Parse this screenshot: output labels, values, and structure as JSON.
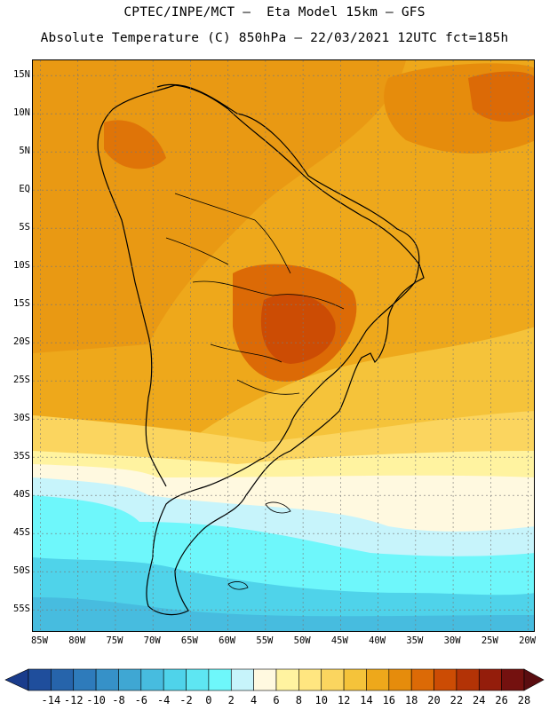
{
  "header": {
    "line1": "CPTEC/INPE/MCT –  Eta Model 15km – GFS",
    "line2": "Absolute Temperature (C) 850hPa – 22/03/2021 12UTC fct=185h"
  },
  "map": {
    "projection": "lat-lon",
    "lon_range": [
      -86,
      -19
    ],
    "lat_range": [
      -58,
      17
    ],
    "lat_ticks": [
      {
        "value": 15,
        "label": "15N"
      },
      {
        "value": 10,
        "label": "10N"
      },
      {
        "value": 5,
        "label": "5N"
      },
      {
        "value": 0,
        "label": "EQ"
      },
      {
        "value": -5,
        "label": "5S"
      },
      {
        "value": -10,
        "label": "10S"
      },
      {
        "value": -15,
        "label": "15S"
      },
      {
        "value": -20,
        "label": "20S"
      },
      {
        "value": -25,
        "label": "25S"
      },
      {
        "value": -30,
        "label": "30S"
      },
      {
        "value": -35,
        "label": "35S"
      },
      {
        "value": -40,
        "label": "40S"
      },
      {
        "value": -45,
        "label": "45S"
      },
      {
        "value": -50,
        "label": "50S"
      },
      {
        "value": -55,
        "label": "55S"
      }
    ],
    "lon_ticks": [
      {
        "value": -85,
        "label": "85W"
      },
      {
        "value": -80,
        "label": "80W"
      },
      {
        "value": -75,
        "label": "75W"
      },
      {
        "value": -70,
        "label": "70W"
      },
      {
        "value": -65,
        "label": "65W"
      },
      {
        "value": -60,
        "label": "60W"
      },
      {
        "value": -55,
        "label": "55W"
      },
      {
        "value": -50,
        "label": "50W"
      },
      {
        "value": -45,
        "label": "45W"
      },
      {
        "value": -40,
        "label": "40W"
      },
      {
        "value": -35,
        "label": "35W"
      },
      {
        "value": -30,
        "label": "30W"
      },
      {
        "value": -25,
        "label": "25W"
      },
      {
        "value": -20,
        "label": "20W"
      }
    ],
    "gridlines": true,
    "coastline_color": "#000000"
  },
  "colorbar": {
    "labels": [
      "-14",
      "-12",
      "-10",
      "-8",
      "-6",
      "-4",
      "-2",
      "0",
      "2",
      "4",
      "6",
      "8",
      "10",
      "12",
      "14",
      "16",
      "18",
      "20",
      "22",
      "24",
      "26",
      "28"
    ],
    "colors": [
      "#1a3c8c",
      "#1f4e9c",
      "#2664ab",
      "#2e7bbb",
      "#3691c8",
      "#3fa7d3",
      "#47bcdf",
      "#4fd3ea",
      "#5ee6f2",
      "#6ef7fb",
      "#c7f4fb",
      "#fff9e0",
      "#fff3a0",
      "#ffe680",
      "#fbd55f",
      "#f5c33a",
      "#eea81b",
      "#e68c0c",
      "#dc6a06",
      "#cc4c04",
      "#b33306",
      "#941d0b",
      "#74110f",
      "#5a0d10"
    ]
  }
}
